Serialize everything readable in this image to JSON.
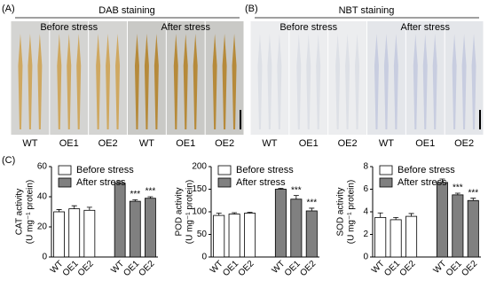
{
  "panels": [
    {
      "label": "(A)",
      "title": "DAB staining",
      "groups": [
        "Before stress",
        "After stress"
      ],
      "labels": [
        "WT",
        "OE1",
        "OE2",
        "WT",
        "OE1",
        "OE2"
      ]
    },
    {
      "label": "(B)",
      "title": "NBT staining",
      "groups": [
        "Before stress",
        "After stress"
      ],
      "labels": [
        "WT",
        "OE1",
        "OE2",
        "WT",
        "OE1",
        "OE2"
      ]
    }
  ],
  "chart_label": "(C)",
  "chart_data": [
    {
      "type": "bar",
      "ylabel": [
        "CAT activity",
        "(U mg⁻¹ protein)"
      ],
      "categories": [
        "WT",
        "OE1",
        "OE2",
        "WT",
        "OE1",
        "OE2"
      ],
      "series": [
        {
          "name": "Before stress",
          "color": "#ffffff",
          "values": [
            30,
            32,
            31,
            null,
            null,
            null
          ],
          "errors": [
            1.5,
            2,
            2,
            null,
            null,
            null
          ]
        },
        {
          "name": "After stress",
          "color": "#808080",
          "values": [
            null,
            null,
            null,
            49,
            37,
            39
          ],
          "errors": [
            null,
            null,
            null,
            1.5,
            1,
            1
          ],
          "significance": [
            null,
            null,
            null,
            null,
            "***",
            "***"
          ]
        }
      ],
      "ylim": [
        0,
        60
      ],
      "yticks": [
        0,
        20,
        40,
        60
      ],
      "legend": "upper left"
    },
    {
      "type": "bar",
      "ylabel": [
        "POD activity",
        "(U mg⁻¹ protein)"
      ],
      "categories": [
        "WT",
        "OE1",
        "OE2",
        "WT",
        "OE1",
        "OE2"
      ],
      "series": [
        {
          "name": "Before stress",
          "color": "#ffffff",
          "values": [
            92,
            95,
            97,
            null,
            null,
            null
          ],
          "errors": [
            5,
            3,
            2,
            null,
            null,
            null
          ]
        },
        {
          "name": "After stress",
          "color": "#808080",
          "values": [
            null,
            null,
            null,
            150,
            128,
            102
          ],
          "errors": [
            null,
            null,
            null,
            2,
            8,
            6
          ],
          "significance": [
            null,
            null,
            null,
            null,
            "***",
            "***"
          ]
        }
      ],
      "ylim": [
        0,
        200
      ],
      "yticks": [
        0,
        50,
        100,
        150,
        200
      ],
      "legend": "upper left"
    },
    {
      "type": "bar",
      "ylabel": [
        "SOD activity",
        "(U mg⁻¹ protein)"
      ],
      "categories": [
        "WT",
        "OE1",
        "OE2",
        "WT",
        "OE1",
        "OE2"
      ],
      "series": [
        {
          "name": "Before stress",
          "color": "#ffffff",
          "values": [
            3.5,
            3.3,
            3.6,
            null,
            null,
            null
          ],
          "errors": [
            0.4,
            0.2,
            0.25,
            null,
            null,
            null
          ]
        },
        {
          "name": "After stress",
          "color": "#808080",
          "values": [
            null,
            null,
            null,
            6.6,
            5.5,
            5.0
          ],
          "errors": [
            null,
            null,
            null,
            0.3,
            0.15,
            0.2
          ],
          "significance": [
            null,
            null,
            null,
            null,
            "***",
            "***"
          ]
        }
      ],
      "ylim": [
        0,
        8
      ],
      "yticks": [
        0,
        2,
        4,
        6,
        8
      ],
      "legend": "upper left"
    }
  ]
}
